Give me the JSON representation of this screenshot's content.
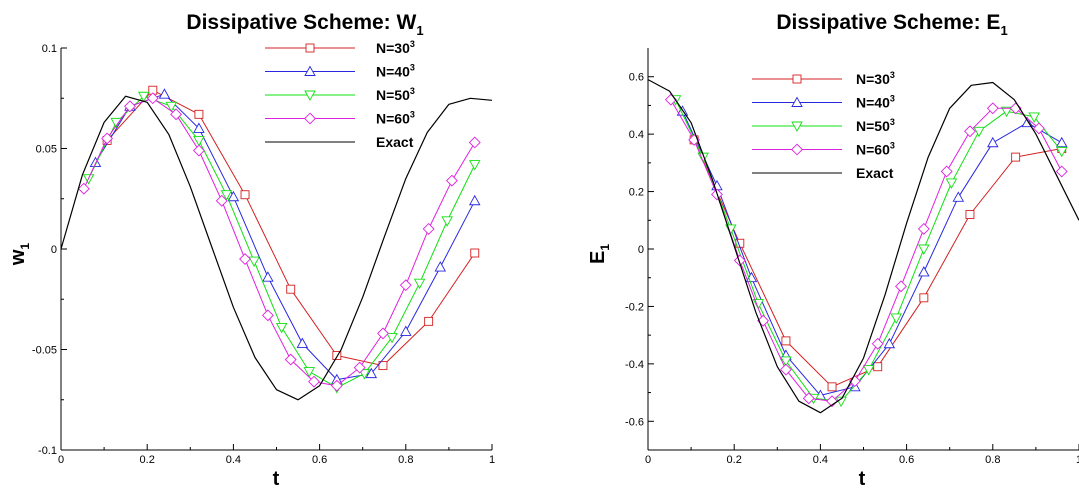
{
  "chart_data": [
    {
      "type": "line",
      "title": "Dissipative Scheme: W",
      "title_sub": "1",
      "xlabel": "t",
      "ylabel": "w",
      "ylabel_sub": "1",
      "xlim": [
        0,
        1
      ],
      "ylim": [
        -0.1,
        0.1
      ],
      "xticks": [
        0,
        0.2,
        0.4,
        0.6,
        0.8,
        1
      ],
      "xtick_labels": [
        "0",
        "0.2",
        "0.4",
        "0.6",
        "0.8",
        "1"
      ],
      "yticks": [
        -0.1,
        -0.05,
        0,
        0.05,
        0.1
      ],
      "ytick_labels": [
        "-0.1",
        "-0.05",
        "0",
        "0.05",
        "0.1"
      ],
      "grid": false,
      "legend_position": "top-right",
      "series": [
        {
          "name": "N=30",
          "name_sup": "3",
          "marker": "square",
          "color": "#d42020",
          "x": [
            0.107,
            0.213,
            0.32,
            0.427,
            0.533,
            0.64,
            0.747,
            0.853,
            0.96
          ],
          "y": [
            0.054,
            0.079,
            0.067,
            0.027,
            -0.02,
            -0.053,
            -0.058,
            -0.036,
            -0.002
          ]
        },
        {
          "name": "N=40",
          "name_sup": "3",
          "marker": "triangle-up",
          "color": "#2828e0",
          "x": [
            0.08,
            0.16,
            0.24,
            0.32,
            0.4,
            0.48,
            0.56,
            0.64,
            0.72,
            0.8,
            0.88,
            0.96
          ],
          "y": [
            0.043,
            0.071,
            0.077,
            0.06,
            0.026,
            -0.014,
            -0.047,
            -0.065,
            -0.062,
            -0.041,
            -0.009,
            0.024
          ]
        },
        {
          "name": "N=50",
          "name_sup": "3",
          "marker": "triangle-down",
          "color": "#10e010",
          "x": [
            0.064,
            0.128,
            0.192,
            0.256,
            0.32,
            0.384,
            0.448,
            0.512,
            0.576,
            0.64,
            0.704,
            0.768,
            0.832,
            0.896,
            0.96
          ],
          "y": [
            0.035,
            0.063,
            0.076,
            0.071,
            0.054,
            0.027,
            -0.006,
            -0.039,
            -0.061,
            -0.069,
            -0.062,
            -0.044,
            -0.017,
            0.014,
            0.042
          ]
        },
        {
          "name": "N=60",
          "name_sup": "3",
          "marker": "diamond",
          "color": "#e020e0",
          "x": [
            0.053,
            0.107,
            0.16,
            0.213,
            0.267,
            0.32,
            0.373,
            0.427,
            0.48,
            0.533,
            0.587,
            0.64,
            0.693,
            0.747,
            0.8,
            0.853,
            0.907,
            0.96
          ],
          "y": [
            0.03,
            0.055,
            0.071,
            0.075,
            0.067,
            0.049,
            0.024,
            -0.005,
            -0.033,
            -0.055,
            -0.066,
            -0.068,
            -0.059,
            -0.042,
            -0.018,
            0.01,
            0.034,
            0.053
          ]
        },
        {
          "name": "Exact",
          "name_sup": "",
          "marker": "none",
          "color": "#000000",
          "x": [
            0,
            0.05,
            0.1,
            0.15,
            0.2,
            0.25,
            0.3,
            0.35,
            0.4,
            0.45,
            0.5,
            0.55,
            0.6,
            0.65,
            0.7,
            0.75,
            0.8,
            0.85,
            0.9,
            0.95,
            1
          ],
          "y": [
            0.0,
            0.037,
            0.063,
            0.076,
            0.073,
            0.057,
            0.031,
            0.001,
            -0.029,
            -0.054,
            -0.07,
            -0.075,
            -0.068,
            -0.05,
            -0.024,
            0.006,
            0.035,
            0.058,
            0.072,
            0.075,
            0.074
          ]
        }
      ]
    },
    {
      "type": "line",
      "title": "Dissipative Scheme: E",
      "title_sub": "1",
      "xlabel": "t",
      "ylabel": "E",
      "ylabel_sub": "1",
      "xlim": [
        0,
        1
      ],
      "ylim": [
        -0.7,
        0.7
      ],
      "xticks": [
        0,
        0.2,
        0.4,
        0.6,
        0.8,
        1
      ],
      "xtick_labels": [
        "0",
        "0.2",
        "0.4",
        "0.6",
        "0.8",
        "1"
      ],
      "yticks": [
        -0.6,
        -0.4,
        -0.2,
        0,
        0.2,
        0.4,
        0.6
      ],
      "ytick_labels": [
        "-0.6",
        "-0.4",
        "-0.2",
        "0",
        "0.2",
        "0.4",
        "0.6"
      ],
      "grid": false,
      "legend_position": "top-center",
      "series": [
        {
          "name": "N=30",
          "name_sup": "3",
          "marker": "square",
          "color": "#d42020",
          "x": [
            0.107,
            0.213,
            0.32,
            0.427,
            0.533,
            0.64,
            0.747,
            0.853,
            0.96
          ],
          "y": [
            0.38,
            0.02,
            -0.32,
            -0.48,
            -0.41,
            -0.17,
            0.12,
            0.32,
            0.35
          ]
        },
        {
          "name": "N=40",
          "name_sup": "3",
          "marker": "triangle-up",
          "color": "#2828e0",
          "x": [
            0.08,
            0.16,
            0.24,
            0.32,
            0.4,
            0.48,
            0.56,
            0.64,
            0.72,
            0.8,
            0.88,
            0.96
          ],
          "y": [
            0.48,
            0.22,
            -0.1,
            -0.37,
            -0.51,
            -0.48,
            -0.33,
            -0.08,
            0.18,
            0.37,
            0.44,
            0.37
          ]
        },
        {
          "name": "N=50",
          "name_sup": "3",
          "marker": "triangle-down",
          "color": "#10e010",
          "x": [
            0.064,
            0.128,
            0.192,
            0.256,
            0.32,
            0.384,
            0.448,
            0.512,
            0.576,
            0.64,
            0.704,
            0.768,
            0.832,
            0.896,
            0.96
          ],
          "y": [
            0.52,
            0.32,
            0.07,
            -0.19,
            -0.39,
            -0.52,
            -0.53,
            -0.42,
            -0.24,
            0.0,
            0.23,
            0.41,
            0.48,
            0.46,
            0.34
          ]
        },
        {
          "name": "N=60",
          "name_sup": "3",
          "marker": "diamond",
          "color": "#e020e0",
          "x": [
            0.053,
            0.107,
            0.16,
            0.213,
            0.267,
            0.32,
            0.373,
            0.427,
            0.48,
            0.533,
            0.587,
            0.64,
            0.693,
            0.747,
            0.8,
            0.853,
            0.907,
            0.96
          ],
          "y": [
            0.52,
            0.38,
            0.19,
            -0.04,
            -0.25,
            -0.42,
            -0.52,
            -0.53,
            -0.46,
            -0.33,
            -0.13,
            0.07,
            0.27,
            0.41,
            0.49,
            0.49,
            0.42,
            0.27
          ]
        },
        {
          "name": "Exact",
          "name_sup": "",
          "marker": "none",
          "color": "#000000",
          "x": [
            0,
            0.05,
            0.1,
            0.15,
            0.2,
            0.25,
            0.3,
            0.35,
            0.4,
            0.45,
            0.5,
            0.55,
            0.6,
            0.65,
            0.7,
            0.75,
            0.8,
            0.85,
            0.9,
            0.95,
            1
          ],
          "y": [
            0.59,
            0.55,
            0.44,
            0.24,
            0.01,
            -0.22,
            -0.41,
            -0.53,
            -0.57,
            -0.52,
            -0.38,
            -0.16,
            0.09,
            0.32,
            0.49,
            0.57,
            0.58,
            0.52,
            0.4,
            0.25,
            0.1
          ]
        }
      ]
    }
  ]
}
